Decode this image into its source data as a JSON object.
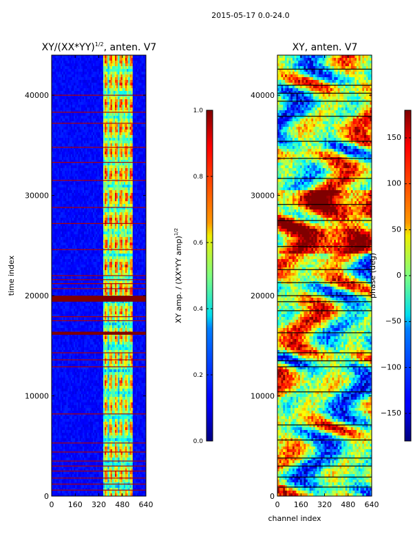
{
  "figure_title": "2015-05-17 0.0-24.0",
  "chart_data": [
    {
      "type": "heatmap",
      "title": "XY/(XX*YY)^1/2, anten. V7",
      "title_main": "XY/(XX*YY)",
      "title_sup": "1/2",
      "title_tail": ", anten. V7",
      "xlabel": "",
      "ylabel": "time index",
      "xlim": [
        0,
        640
      ],
      "ylim": [
        0,
        44000
      ],
      "xticks": [
        0,
        160,
        320,
        480,
        640
      ],
      "yticks": [
        0,
        10000,
        20000,
        30000,
        40000
      ],
      "colorscale": "jet",
      "colorbar": {
        "label": "XY amp. / (XX*YY amp)^1/2",
        "label_main": "XY amp. / (XX*YY amp)",
        "label_sup": "1/2",
        "range": [
          0.0,
          1.0
        ],
        "ticks": [
          "0.0",
          "0.2",
          "0.4",
          "0.6",
          "0.8",
          "1.0"
        ]
      }
    },
    {
      "type": "heatmap",
      "title": "XY, anten. V7",
      "xlabel": "channel index",
      "ylabel": "",
      "xlim": [
        0,
        640
      ],
      "ylim": [
        0,
        44000
      ],
      "xticks": [
        0,
        160,
        320,
        480,
        640
      ],
      "yticks": [
        0,
        10000,
        20000,
        30000,
        40000
      ],
      "colorscale": "jet",
      "colorbar": {
        "label": "phase (deg)",
        "range": [
          -180,
          180
        ],
        "ticks": [
          "150",
          "100",
          "50",
          "0",
          "−50",
          "−100",
          "−150"
        ]
      }
    }
  ]
}
